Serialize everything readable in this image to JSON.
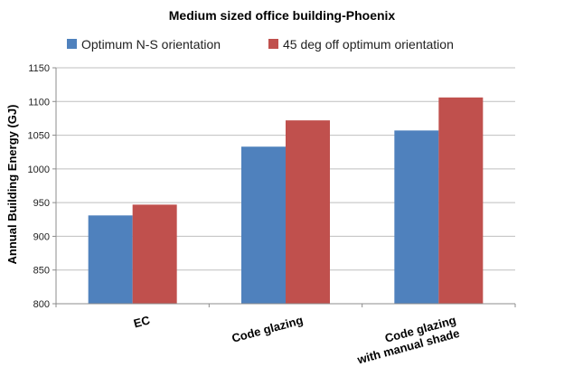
{
  "chart_data": {
    "type": "bar",
    "title": "Medium sized office building-Phoenix",
    "ylabel": "Annual Building Energy (GJ)",
    "xlabel": "",
    "categories": [
      [
        "EC"
      ],
      [
        "Code glazing"
      ],
      [
        "Code glazing",
        "with manual shade"
      ]
    ],
    "series": [
      {
        "name": "Optimum N-S orientation",
        "color": "#4f81bd",
        "values": [
          931,
          1033,
          1057
        ]
      },
      {
        "name": "45 deg off optimum orientation",
        "color": "#c0504d",
        "values": [
          947,
          1072,
          1106
        ]
      }
    ],
    "ylim": [
      800,
      1150
    ],
    "yticks": [
      800,
      850,
      900,
      950,
      1000,
      1050,
      1100,
      1150
    ],
    "grid": true,
    "legend_position": "top"
  }
}
